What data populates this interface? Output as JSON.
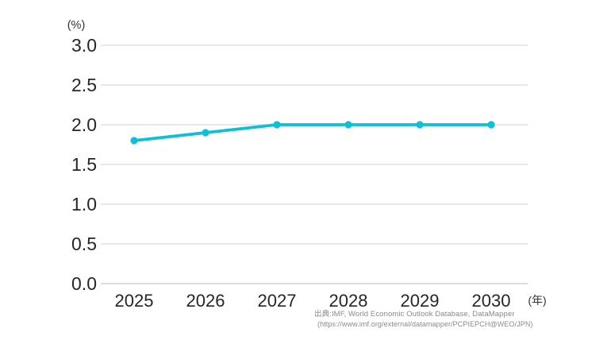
{
  "chart": {
    "y_unit_label": "(%)",
    "x_unit_label": "(年)"
  },
  "source": {
    "line1": "出典:IMF, World Economic Outlook Database, DataMapper",
    "line2": "(https://www.imf.org/external/datamapper/PCPIEPCH@WEO/JPN)"
  },
  "chart_data": {
    "type": "line",
    "title": "",
    "categories": [
      "2025",
      "2026",
      "2027",
      "2028",
      "2029",
      "2030"
    ],
    "series": [
      {
        "name": "consumer-price-inflation-percent",
        "values": [
          1.8,
          1.9,
          2.0,
          2.0,
          2.0,
          2.0
        ]
      }
    ],
    "xlabel": "(年)",
    "ylabel": "(%)",
    "ylim": [
      0.0,
      3.0
    ],
    "ytick_step": 0.5,
    "yticks": [
      3.0,
      2.5,
      2.0,
      1.5,
      1.0,
      0.5,
      0.0
    ],
    "grid": true,
    "legend_position": "none",
    "line_color": "#0FBFD8",
    "gridline_color": "#DBDBDB",
    "baseline_color": "#C6C6C6",
    "annotation_source_line1": "出典:IMF, World Economic Outlook Database, DataMapper",
    "annotation_source_line2": "(https://www.imf.org/external/datamapper/PCPIEPCH@WEO/JPN)"
  }
}
